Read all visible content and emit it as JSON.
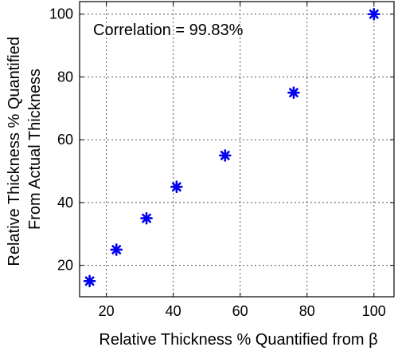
{
  "chart_data": {
    "type": "scatter",
    "title": "",
    "xlabel": "Relative Thickness % Quantified from β",
    "ylabel": "Relative Thickness % Quantified From Actual Thickness",
    "ylabel_lines": [
      "Relative Thickness % Quantified",
      "From Actual Thickness"
    ],
    "xlim": [
      12,
      106
    ],
    "ylim": [
      10,
      104
    ],
    "xticks": [
      20,
      40,
      60,
      80,
      100
    ],
    "yticks": [
      20,
      40,
      60,
      80,
      100
    ],
    "grid": true,
    "annotation": "Correlation = 99.83%",
    "marker_color": "#0000ee",
    "marker": "asterisk",
    "series": [
      {
        "points": [
          {
            "x": 15,
            "y": 15
          },
          {
            "x": 23,
            "y": 25
          },
          {
            "x": 32,
            "y": 35
          },
          {
            "x": 41,
            "y": 45
          },
          {
            "x": 55.5,
            "y": 55
          },
          {
            "x": 76,
            "y": 75
          },
          {
            "x": 100,
            "y": 100
          }
        ]
      }
    ]
  }
}
